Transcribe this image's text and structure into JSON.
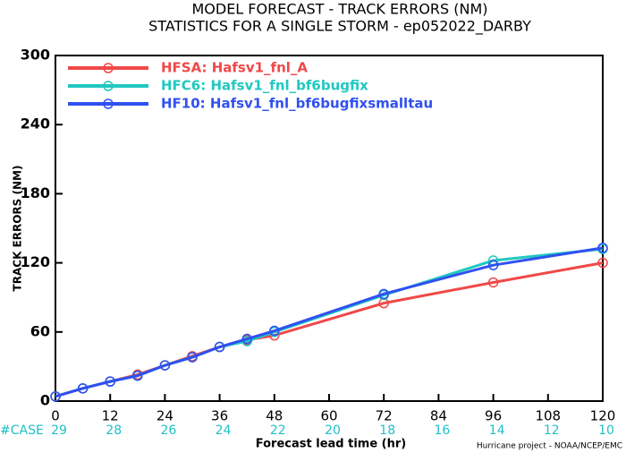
{
  "chart_data": {
    "type": "line",
    "title": "MODEL FORECAST - TRACK ERRORS (NM)",
    "subtitle": "STATISTICS FOR A SINGLE STORM - ep052022_DARBY",
    "x_label": "Forecast lead time (hr)",
    "y_label": "TRACK ERRORS (NM)",
    "footnote": "Hurricane project - NOAA/NCEP/EMC",
    "case_label": "#CASE",
    "case_counts": [
      29,
      28,
      26,
      24,
      22,
      20,
      18,
      16,
      14,
      12,
      10
    ],
    "case_color": "#20c0c8",
    "x": [
      0,
      6,
      12,
      18,
      24,
      30,
      36,
      42,
      48,
      72,
      96,
      120
    ],
    "xlim": [
      0,
      120
    ],
    "xticks": [
      0,
      12,
      24,
      36,
      48,
      60,
      72,
      84,
      96,
      108,
      120
    ],
    "ylim": [
      0,
      300
    ],
    "yticks": [
      0,
      60,
      120,
      180,
      240,
      300
    ],
    "legend": "upper left",
    "series": [
      {
        "name": "HFSA: Hafsv1_fnl_A",
        "color": "#f04848",
        "values": [
          4,
          11,
          17,
          23,
          31,
          39,
          47,
          53,
          57,
          85,
          103,
          120
        ]
      },
      {
        "name": "HFC6: Hafsv1_fnl_bf6bugfix",
        "color": "#20c8c0",
        "values": [
          4,
          11,
          17,
          22,
          31,
          38,
          47,
          52,
          60,
          92,
          122,
          132
        ]
      },
      {
        "name": "HF10: Hafsv1_fnl_bf6bugfixsmalltau",
        "color": "#3050f0",
        "values": [
          4,
          11,
          17,
          22,
          31,
          38,
          47,
          54,
          61,
          93,
          118,
          133
        ]
      }
    ]
  }
}
